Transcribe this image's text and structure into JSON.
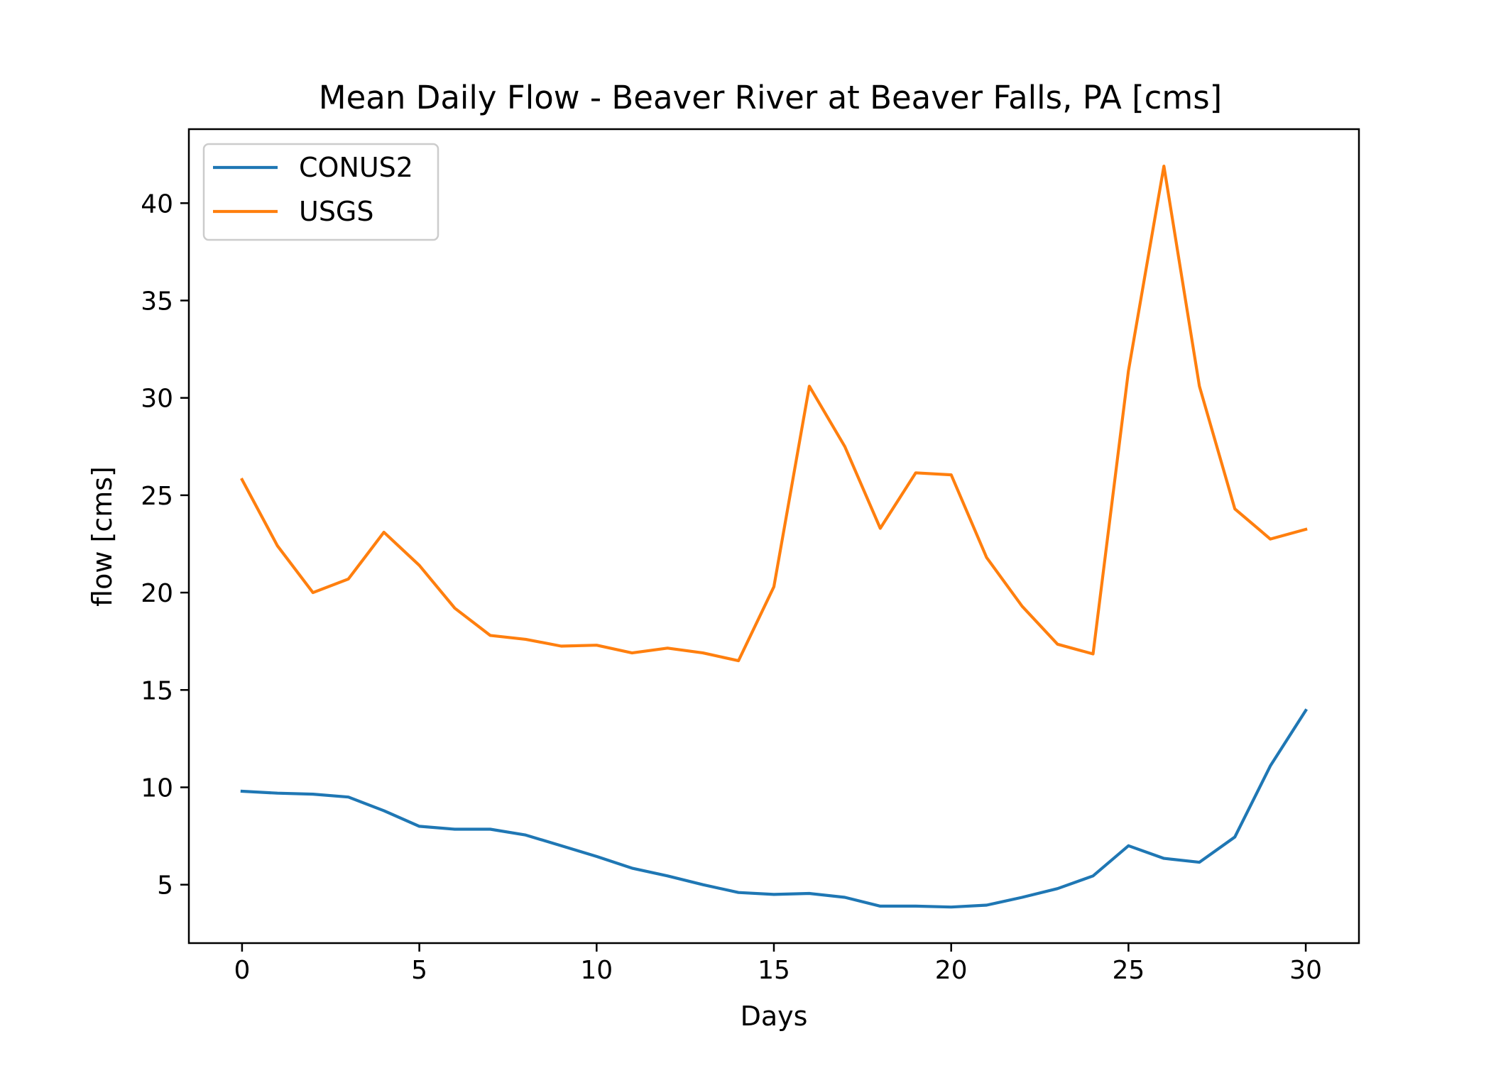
{
  "chart_data": {
    "type": "line",
    "title": "Mean Daily Flow - Beaver River at Beaver Falls, PA [cms]",
    "xlabel": "Days",
    "ylabel": "flow [cms]",
    "xlim": [
      -1.5,
      31.5
    ],
    "ylim": [
      2.0,
      43.8
    ],
    "xticks": [
      0,
      5,
      10,
      15,
      20,
      25,
      30
    ],
    "yticks": [
      5,
      10,
      15,
      20,
      25,
      30,
      35,
      40
    ],
    "grid": false,
    "legend_position": "upper-left",
    "x": [
      0,
      1,
      2,
      3,
      4,
      5,
      6,
      7,
      8,
      9,
      10,
      11,
      12,
      13,
      14,
      15,
      16,
      17,
      18,
      19,
      20,
      21,
      22,
      23,
      24,
      25,
      26,
      27,
      28,
      29,
      30
    ],
    "series": [
      {
        "name": "CONUS2",
        "color": "#1f77b4",
        "values": [
          9.8,
          9.7,
          9.65,
          9.5,
          8.8,
          8.0,
          7.85,
          7.85,
          7.55,
          7.0,
          6.45,
          5.85,
          5.45,
          5.0,
          4.6,
          4.5,
          4.55,
          4.35,
          3.9,
          3.9,
          3.85,
          3.95,
          4.35,
          4.8,
          5.45,
          7.0,
          6.35,
          6.15,
          7.45,
          11.1,
          13.95
        ]
      },
      {
        "name": "USGS",
        "color": "#ff7f0e",
        "values": [
          25.8,
          22.4,
          20.0,
          20.7,
          23.1,
          21.4,
          19.2,
          17.8,
          17.6,
          17.25,
          17.3,
          16.9,
          17.15,
          16.9,
          16.5,
          20.3,
          30.6,
          27.5,
          23.3,
          26.15,
          26.05,
          21.8,
          19.3,
          17.35,
          16.85,
          31.4,
          41.9,
          30.6,
          24.3,
          22.75,
          23.25
        ]
      }
    ]
  }
}
